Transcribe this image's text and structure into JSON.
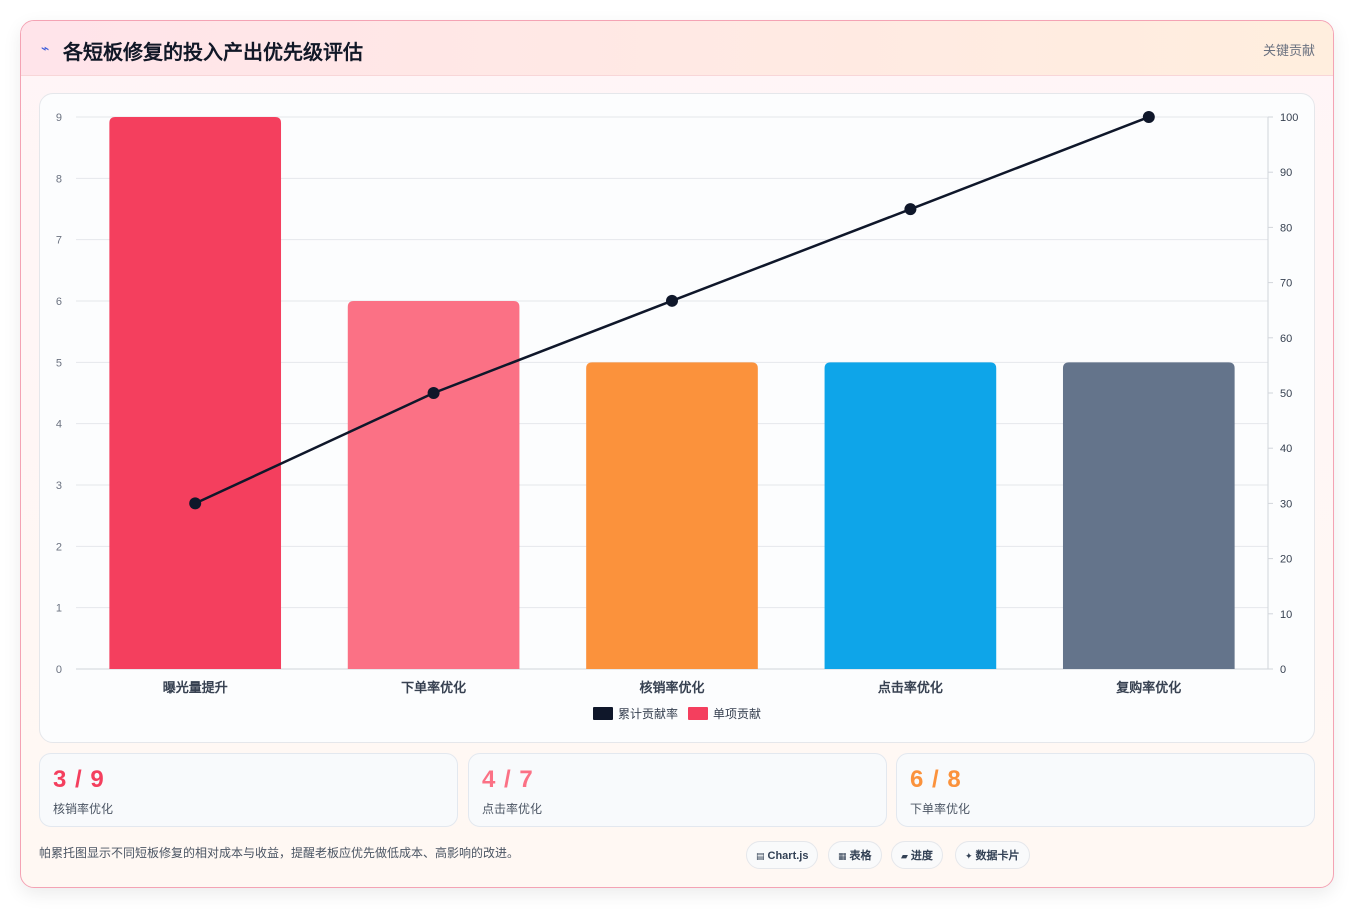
{
  "header": {
    "title": "各短板修复的投入产出优先级评估",
    "tag": "关键贡献",
    "icon": "lightning-icon",
    "icon_color": "#3b5bdb"
  },
  "chart_data": {
    "type": "bar",
    "categories": [
      "曝光量提升",
      "下单率优化",
      "核销率优化",
      "点击率优化",
      "复购率优化"
    ],
    "series": [
      {
        "name": "单项贡献",
        "type": "bar",
        "axis": "left",
        "values": [
          9,
          6,
          5,
          5,
          5
        ],
        "colors": [
          "#f43f5e",
          "#fb7185",
          "#fb923c",
          "#0ea5e9",
          "#64748b"
        ]
      },
      {
        "name": "累计贡献率",
        "type": "line",
        "axis": "right",
        "values": [
          30,
          50,
          66.7,
          83.3,
          100
        ],
        "color": "#0f172a"
      }
    ],
    "ylim": [
      0,
      9
    ],
    "y_ticks": [
      "0",
      "1",
      "2",
      "3",
      "4",
      "5",
      "6",
      "7",
      "8",
      "9"
    ],
    "y2lim": [
      0,
      100
    ],
    "y2_ticks": [
      "0",
      "10",
      "20",
      "30",
      "40",
      "50",
      "60",
      "70",
      "80",
      "90",
      "100"
    ],
    "legend": {
      "placement": "bottom-center",
      "items": [
        {
          "label": "累计贡献率",
          "color": "#0f172a"
        },
        {
          "label": "单项贡献",
          "color": "#f43f5e"
        }
      ]
    },
    "grid": true
  },
  "stats": [
    {
      "value": "3 / 9",
      "label": "核销率优化",
      "color": "#f43f5e"
    },
    {
      "value": "4 / 7",
      "label": "点击率优化",
      "color": "#fb7185"
    },
    {
      "value": "6 / 8",
      "label": "下单率优化",
      "color": "#fb923c"
    }
  ],
  "footnote": "帕累托图显示不同短板修复的相对成本与收益，提醒老板应优先做低成本、高影响的改进。",
  "chips": [
    {
      "label": "Chart.js",
      "icon": "chart-icon",
      "glyph": "▤"
    },
    {
      "label": "表格",
      "icon": "table-icon",
      "glyph": "▦"
    },
    {
      "label": "进度",
      "icon": "progress-icon",
      "glyph": "▰"
    },
    {
      "label": "数据卡片",
      "icon": "sparkle-icon",
      "glyph": "✦"
    }
  ]
}
